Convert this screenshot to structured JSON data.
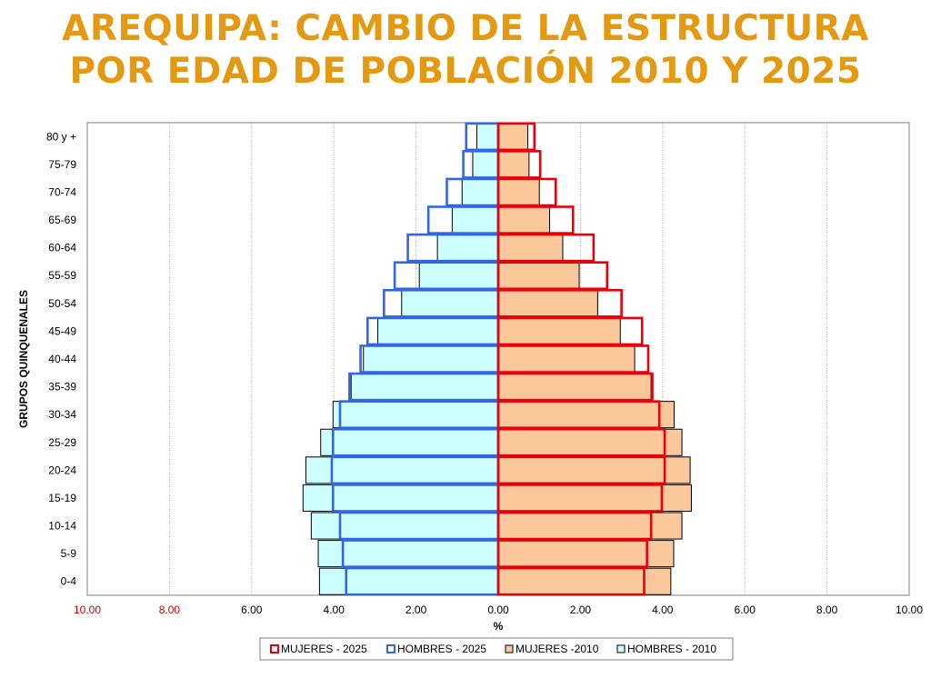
{
  "title": {
    "line1": "AREQUIPA: CAMBIO DE LA ESTRUCTURA",
    "line2": "POR EDAD DE POBLACIÓN 2010 Y 2025"
  },
  "chart_data": {
    "type": "bar",
    "orientation": "horizontal-population-pyramid",
    "categories": [
      "0-4",
      "5-9",
      "10-14",
      "15-19",
      "20-24",
      "25-29",
      "30-34",
      "35-39",
      "40-44",
      "45-49",
      "50-54",
      "55-59",
      "60-64",
      "65-69",
      "70-74",
      "75-79",
      "80 y +"
    ],
    "ylabel": "GRUPOS QUINQUENALES",
    "xlabel": "%",
    "xlim": [
      -10,
      10
    ],
    "xticks": [
      "10.00",
      "8.00",
      "6.00",
      "4.00",
      "2.00",
      "0.00",
      "2.00",
      "4.00",
      "6.00",
      "8.00",
      "10.00"
    ],
    "xtick_colors": [
      "#cc0000",
      "#cc0000",
      "#000000",
      "#000000",
      "#000000",
      "#000000",
      "#000000",
      "#000000",
      "#000000",
      "#000000",
      "#000000"
    ],
    "grid": "vertical",
    "legend_position": "bottom",
    "colors": {
      "mujeres_2025": "#e8000b",
      "hombres_2025": "#3366e6",
      "mujeres_2010_fill": "#fbc89c",
      "hombres_2010_fill": "#ccffff",
      "outline_2010": "#000000"
    },
    "series": [
      {
        "name": "MUJERES - 2025",
        "side": "right",
        "style": "outline",
        "values": [
          3.55,
          3.62,
          3.72,
          3.98,
          4.05,
          4.05,
          3.92,
          3.75,
          3.65,
          3.5,
          3.0,
          2.65,
          2.32,
          1.82,
          1.4,
          1.02,
          0.88
        ]
      },
      {
        "name": "HOMBRES - 2025",
        "side": "left",
        "style": "outline",
        "values": [
          3.7,
          3.78,
          3.85,
          4.02,
          4.05,
          4.02,
          3.85,
          3.62,
          3.35,
          3.18,
          2.78,
          2.52,
          2.2,
          1.7,
          1.25,
          0.85,
          0.78
        ]
      },
      {
        "name": "MUJERES -2010",
        "side": "right",
        "style": "filled",
        "values": [
          4.2,
          4.27,
          4.47,
          4.7,
          4.67,
          4.47,
          4.28,
          3.72,
          3.32,
          2.97,
          2.42,
          1.97,
          1.57,
          1.25,
          1.0,
          0.75,
          0.72
        ]
      },
      {
        "name": "HOMBRES - 2010",
        "side": "left",
        "style": "filled",
        "values": [
          4.35,
          4.38,
          4.55,
          4.75,
          4.68,
          4.32,
          4.02,
          3.58,
          3.28,
          2.93,
          2.35,
          1.92,
          1.48,
          1.12,
          0.88,
          0.62,
          0.52
        ]
      }
    ]
  }
}
